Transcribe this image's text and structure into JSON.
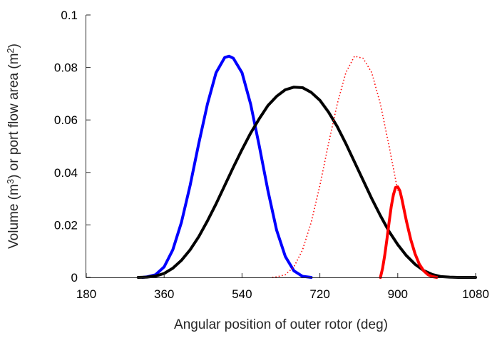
{
  "chart_data": {
    "type": "line",
    "title": "",
    "xlabel": "Angular position of outer rotor (deg)",
    "ylabel_parts": [
      "Volume (m",
      "3",
      ") or port flow area (m",
      "2",
      ")"
    ],
    "xlim": [
      180,
      1080
    ],
    "ylim": [
      0,
      0.1
    ],
    "xticks": [
      180,
      360,
      540,
      720,
      900,
      1080
    ],
    "yticks": [
      0,
      0.02,
      0.04,
      0.06,
      0.08,
      0.1
    ],
    "xtick_labels": [
      "180",
      "360",
      "540",
      "720",
      "900",
      "1080"
    ],
    "ytick_labels": [
      "0",
      "0.02",
      "0.04",
      "0.06",
      "0.08",
      "0.1"
    ],
    "grid": false,
    "legend": "none",
    "series": [
      {
        "color": "#0000ff",
        "style": "solid",
        "x": [
          310,
          320,
          340,
          360,
          380,
          400,
          420,
          440,
          460,
          480,
          500,
          510,
          520,
          540,
          560,
          580,
          600,
          620,
          640,
          660,
          680,
          700
        ],
        "y": [
          0,
          0.0002,
          0.001,
          0.004,
          0.0105,
          0.021,
          0.035,
          0.051,
          0.066,
          0.078,
          0.0838,
          0.0843,
          0.0835,
          0.078,
          0.066,
          0.05,
          0.033,
          0.018,
          0.008,
          0.0025,
          0.0004,
          0
        ]
      },
      {
        "color": "#000000",
        "style": "solid",
        "x": [
          300,
          320,
          340,
          360,
          380,
          400,
          420,
          440,
          460,
          480,
          500,
          520,
          540,
          560,
          580,
          600,
          620,
          640,
          660,
          680,
          700,
          720,
          740,
          760,
          780,
          800,
          820,
          840,
          860,
          880,
          900,
          920,
          940,
          960,
          980,
          1000,
          1020,
          1040,
          1060,
          1080
        ],
        "y": [
          0,
          0.0001,
          0.0005,
          0.0015,
          0.0035,
          0.0065,
          0.0105,
          0.0155,
          0.0215,
          0.028,
          0.035,
          0.042,
          0.0487,
          0.055,
          0.0605,
          0.0655,
          0.069,
          0.0715,
          0.0725,
          0.0723,
          0.0705,
          0.0675,
          0.063,
          0.0575,
          0.051,
          0.044,
          0.037,
          0.03,
          0.0235,
          0.0175,
          0.0125,
          0.0083,
          0.005,
          0.0026,
          0.0011,
          0.0003,
          0.0001,
          0,
          0,
          0
        ]
      },
      {
        "color": "#ff0000",
        "style": "dotted",
        "x": [
          610,
          620,
          640,
          660,
          680,
          700,
          720,
          740,
          760,
          780,
          800,
          820,
          840,
          860,
          880,
          900
        ],
        "y": [
          0,
          0.0002,
          0.001,
          0.004,
          0.0105,
          0.021,
          0.035,
          0.051,
          0.066,
          0.078,
          0.0843,
          0.0835,
          0.078,
          0.066,
          0.05,
          0.033
        ]
      },
      {
        "color": "#ff0000",
        "style": "solid",
        "x": [
          860,
          865,
          870,
          875,
          880,
          885,
          890,
          895,
          900,
          905,
          910,
          915,
          920,
          930,
          940,
          950,
          960,
          970,
          980,
          990
        ],
        "y": [
          0,
          0.0035,
          0.0085,
          0.0145,
          0.021,
          0.027,
          0.0315,
          0.0343,
          0.0345,
          0.033,
          0.0295,
          0.0255,
          0.0215,
          0.0145,
          0.009,
          0.005,
          0.0025,
          0.001,
          0.0003,
          0
        ]
      }
    ]
  }
}
